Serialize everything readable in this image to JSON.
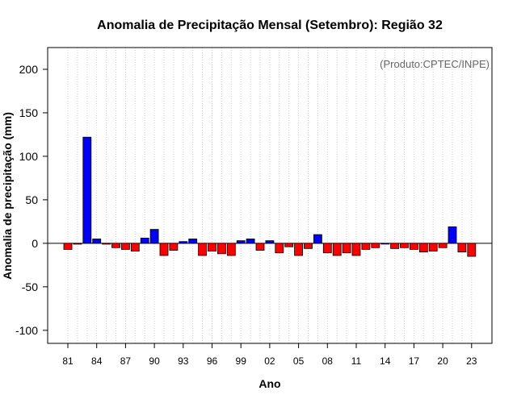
{
  "chart_data": {
    "type": "bar",
    "title": "Anomalia de Precipitação Mensal (Setembro): Região 32",
    "xlabel": "Ano",
    "ylabel": "Anomalia de precipitação (mm)",
    "credit": "(Produto:CPTEC/INPE)",
    "ylim": [
      -115,
      225
    ],
    "yticks": [
      -100,
      -50,
      0,
      50,
      100,
      150,
      200
    ],
    "xtick_labels": [
      "81",
      "84",
      "87",
      "90",
      "93",
      "96",
      "99",
      "02",
      "05",
      "08",
      "11",
      "14",
      "17",
      "20",
      "23"
    ],
    "grid": "vertical dotted lines at every year",
    "colors": {
      "positive": "#0000ff",
      "negative": "#ff0000"
    },
    "categories": [
      "1981",
      "1982",
      "1983",
      "1984",
      "1985",
      "1986",
      "1987",
      "1988",
      "1989",
      "1990",
      "1991",
      "1992",
      "1993",
      "1994",
      "1995",
      "1996",
      "1997",
      "1998",
      "1999",
      "2000",
      "2001",
      "2002",
      "2003",
      "2004",
      "2005",
      "2006",
      "2007",
      "2008",
      "2009",
      "2010",
      "2011",
      "2012",
      "2013",
      "2014",
      "2015",
      "2016",
      "2017",
      "2018",
      "2019",
      "2020",
      "2021",
      "2022",
      "2023"
    ],
    "values": [
      -7,
      -1,
      122,
      5,
      -1,
      -5,
      -7,
      -9,
      6,
      16,
      -14,
      -8,
      2,
      5,
      -14,
      -9,
      -12,
      -14,
      3,
      5,
      -8,
      3,
      -11,
      -4,
      -14,
      -6,
      10,
      -11,
      -14,
      -11,
      -14,
      -7,
      -5,
      0,
      -6,
      -5,
      -7,
      -10,
      -9,
      -5,
      19,
      -10,
      -15
    ]
  }
}
